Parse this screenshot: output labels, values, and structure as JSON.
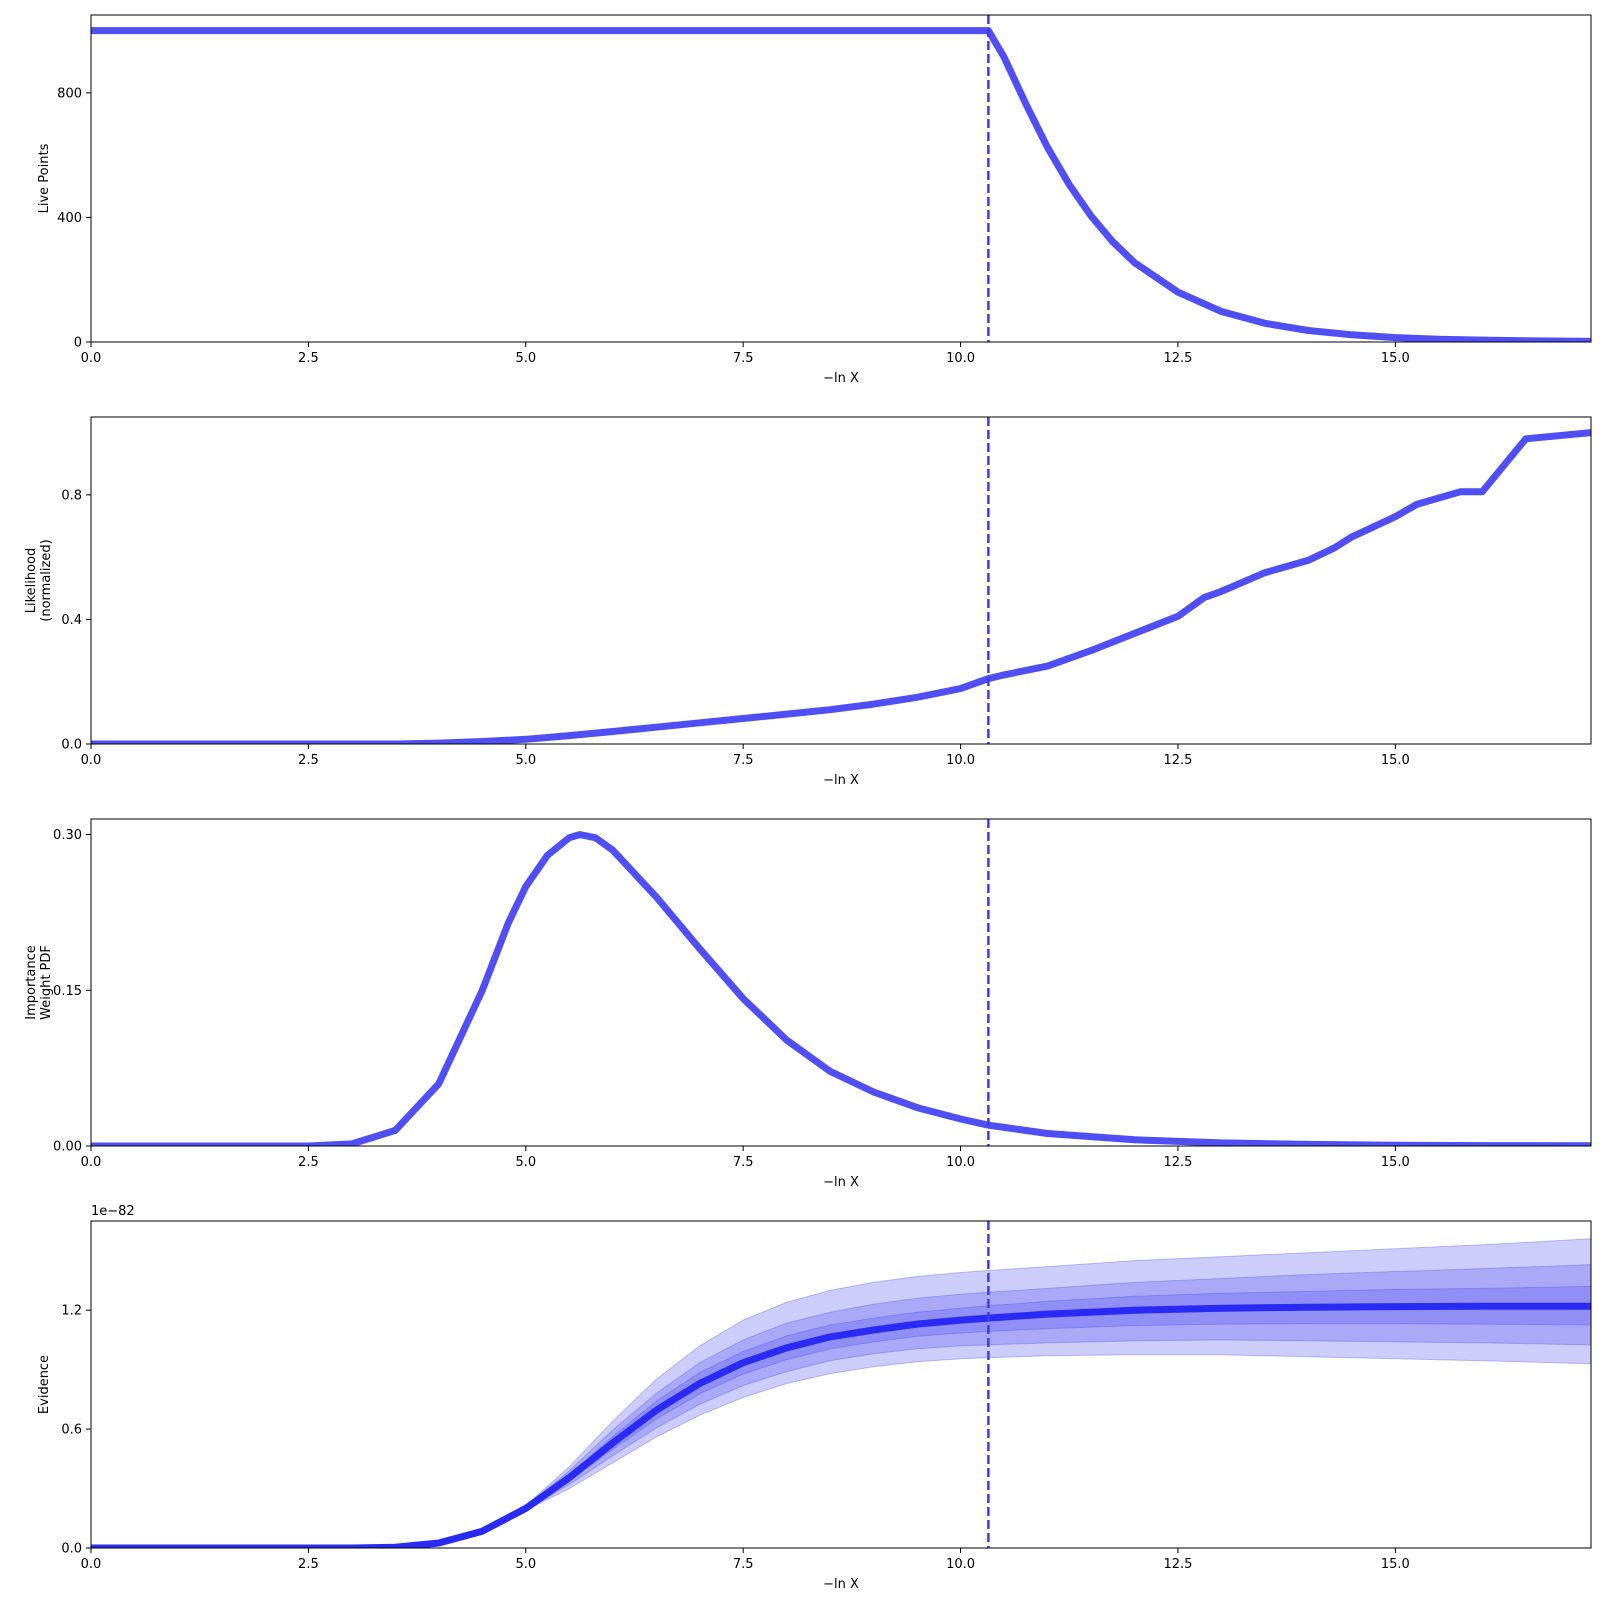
{
  "chart_data": [
    {
      "type": "line",
      "id": "live",
      "ylabel": [
        "Live Points"
      ],
      "xlabel": "−ln X",
      "xlim": [
        0,
        17.25
      ],
      "ylim": [
        0,
        1050
      ],
      "xticks": [
        0,
        2.5,
        5,
        7.5,
        10,
        12.5,
        15
      ],
      "xtick_labels": [
        "0.0",
        "2.5",
        "5.0",
        "7.5",
        "10.0",
        "12.5",
        "15.0"
      ],
      "yticks": [
        0,
        400,
        800
      ],
      "ytick_labels": [
        "0",
        "400",
        "800"
      ],
      "series": [
        {
          "x": [
            0,
            10.32,
            10.5,
            10.75,
            11.0,
            11.25,
            11.5,
            11.75,
            12.0,
            12.5,
            13.0,
            13.5,
            14.0,
            14.5,
            15.0,
            15.5,
            16.0,
            16.5,
            17.25
          ],
          "y": [
            1000,
            1000,
            915,
            765,
            625,
            505,
            405,
            322,
            255,
            160,
            98,
            60,
            37,
            23,
            14,
            9,
            6,
            4,
            2
          ]
        }
      ],
      "vline": 10.32,
      "line_color": "#4f4ff5",
      "vline_color": "#3b3bf0"
    },
    {
      "type": "line",
      "id": "likelihood",
      "ylabel": [
        "Likelihood",
        "(normalized)"
      ],
      "xlabel": "−ln X",
      "xlim": [
        0,
        17.25
      ],
      "ylim": [
        0,
        1.05
      ],
      "xticks": [
        0,
        2.5,
        5,
        7.5,
        10,
        12.5,
        15
      ],
      "xtick_labels": [
        "0.0",
        "2.5",
        "5.0",
        "7.5",
        "10.0",
        "12.5",
        "15.0"
      ],
      "yticks": [
        0,
        0.4,
        0.8
      ],
      "ytick_labels": [
        "0.0",
        "0.4",
        "0.8"
      ],
      "series": [
        {
          "x": [
            0,
            3.5,
            4.0,
            4.5,
            5.0,
            5.5,
            6.0,
            6.5,
            7.0,
            7.5,
            8.0,
            8.5,
            9.0,
            9.5,
            10.0,
            10.32,
            10.5,
            11.0,
            11.5,
            12.0,
            12.5,
            12.8,
            13.0,
            13.5,
            14.0,
            14.3,
            14.5,
            15.0,
            15.25,
            15.5,
            15.75,
            16.0,
            16.5,
            17.25
          ],
          "y": [
            0,
            0,
            0.003,
            0.008,
            0.015,
            0.027,
            0.04,
            0.054,
            0.068,
            0.082,
            0.096,
            0.11,
            0.128,
            0.15,
            0.178,
            0.21,
            0.222,
            0.25,
            0.3,
            0.355,
            0.41,
            0.47,
            0.49,
            0.55,
            0.59,
            0.63,
            0.665,
            0.73,
            0.77,
            0.79,
            0.81,
            0.81,
            0.98,
            1.0
          ]
        }
      ],
      "vline": 10.32,
      "line_color": "#4f4ff5",
      "vline_color": "#3b3bf0"
    },
    {
      "type": "line",
      "id": "importance",
      "ylabel": [
        "Importance",
        "Weight PDF"
      ],
      "xlabel": "−ln X",
      "xlim": [
        0,
        17.25
      ],
      "ylim": [
        0,
        0.315
      ],
      "xticks": [
        0,
        2.5,
        5,
        7.5,
        10,
        12.5,
        15
      ],
      "xtick_labels": [
        "0.0",
        "2.5",
        "5.0",
        "7.5",
        "10.0",
        "12.5",
        "15.0"
      ],
      "yticks": [
        0,
        0.15,
        0.3
      ],
      "ytick_labels": [
        "0.00",
        "0.15",
        "0.30"
      ],
      "series": [
        {
          "x": [
            0,
            2.5,
            3.0,
            3.5,
            4.0,
            4.5,
            4.8,
            5.0,
            5.25,
            5.5,
            5.62,
            5.8,
            6.0,
            6.5,
            7.0,
            7.5,
            8.0,
            8.5,
            9.0,
            9.5,
            10.0,
            10.32,
            11.0,
            12.0,
            13.0,
            14.0,
            15.0,
            16.0,
            17.25
          ],
          "y": [
            0,
            0,
            0.002,
            0.015,
            0.06,
            0.15,
            0.215,
            0.25,
            0.28,
            0.297,
            0.3,
            0.297,
            0.285,
            0.24,
            0.19,
            0.142,
            0.102,
            0.072,
            0.052,
            0.037,
            0.026,
            0.02,
            0.012,
            0.006,
            0.003,
            0.0015,
            0.0008,
            0.0004,
            0.0002
          ]
        }
      ],
      "vline": 10.32,
      "line_color": "#4f4ff5",
      "vline_color": "#3b3bf0"
    },
    {
      "type": "area",
      "id": "evidence",
      "ylabel": [
        "Evidence"
      ],
      "xlabel": "−ln X",
      "offset_text": "1e−82",
      "xlim": [
        0,
        17.25
      ],
      "ylim": [
        0,
        1.65
      ],
      "xticks": [
        0,
        2.5,
        5,
        7.5,
        10,
        12.5,
        15
      ],
      "xtick_labels": [
        "0.0",
        "2.5",
        "5.0",
        "7.5",
        "10.0",
        "12.5",
        "15.0"
      ],
      "yticks": [
        0,
        0.6,
        1.2
      ],
      "ytick_labels": [
        "0.0",
        "0.6",
        "1.2"
      ],
      "x": [
        0,
        3.0,
        3.5,
        4.0,
        4.5,
        5.0,
        5.5,
        6.0,
        6.5,
        7.0,
        7.5,
        8.0,
        8.5,
        9.0,
        9.5,
        10.0,
        10.32,
        11.0,
        12.0,
        13.0,
        14.0,
        15.0,
        16.0,
        17.25
      ],
      "series": [
        {
          "name": "median",
          "values": [
            0,
            0,
            0.004,
            0.025,
            0.085,
            0.2,
            0.355,
            0.53,
            0.695,
            0.83,
            0.935,
            1.01,
            1.065,
            1.1,
            1.13,
            1.15,
            1.16,
            1.18,
            1.2,
            1.21,
            1.215,
            1.218,
            1.22,
            1.22
          ]
        }
      ],
      "bands": [
        {
          "sigma": 3,
          "lower": [
            0,
            0,
            0.004,
            0.025,
            0.085,
            0.19,
            0.3,
            0.43,
            0.56,
            0.67,
            0.76,
            0.83,
            0.88,
            0.915,
            0.94,
            0.955,
            0.96,
            0.97,
            0.975,
            0.975,
            0.965,
            0.955,
            0.945,
            0.93
          ],
          "upper": [
            0,
            0,
            0.004,
            0.025,
            0.09,
            0.215,
            0.41,
            0.64,
            0.85,
            1.02,
            1.15,
            1.24,
            1.3,
            1.34,
            1.37,
            1.39,
            1.4,
            1.42,
            1.45,
            1.47,
            1.49,
            1.51,
            1.53,
            1.56
          ]
        },
        {
          "sigma": 2,
          "lower": [
            0,
            0,
            0.004,
            0.025,
            0.085,
            0.195,
            0.32,
            0.465,
            0.605,
            0.725,
            0.82,
            0.89,
            0.945,
            0.98,
            1.005,
            1.02,
            1.025,
            1.035,
            1.045,
            1.05,
            1.045,
            1.04,
            1.035,
            1.025
          ],
          "upper": [
            0,
            0,
            0.004,
            0.025,
            0.088,
            0.21,
            0.39,
            0.595,
            0.78,
            0.935,
            1.05,
            1.135,
            1.19,
            1.23,
            1.26,
            1.28,
            1.29,
            1.31,
            1.34,
            1.36,
            1.38,
            1.395,
            1.41,
            1.43
          ]
        },
        {
          "sigma": 1,
          "lower": [
            0,
            0,
            0.004,
            0.025,
            0.085,
            0.198,
            0.34,
            0.498,
            0.65,
            0.778,
            0.878,
            0.95,
            1.005,
            1.04,
            1.068,
            1.085,
            1.093,
            1.107,
            1.122,
            1.13,
            1.132,
            1.132,
            1.13,
            1.125
          ],
          "upper": [
            0,
            0,
            0.004,
            0.025,
            0.086,
            0.205,
            0.37,
            0.562,
            0.74,
            0.885,
            0.992,
            1.07,
            1.125,
            1.16,
            1.19,
            1.21,
            1.222,
            1.245,
            1.27,
            1.285,
            1.295,
            1.305,
            1.31,
            1.32
          ]
        }
      ],
      "vline": 10.32,
      "line_color": "#2a2af5",
      "band_color": "#4d4df0",
      "vline_color": "#3b3bf0"
    }
  ]
}
